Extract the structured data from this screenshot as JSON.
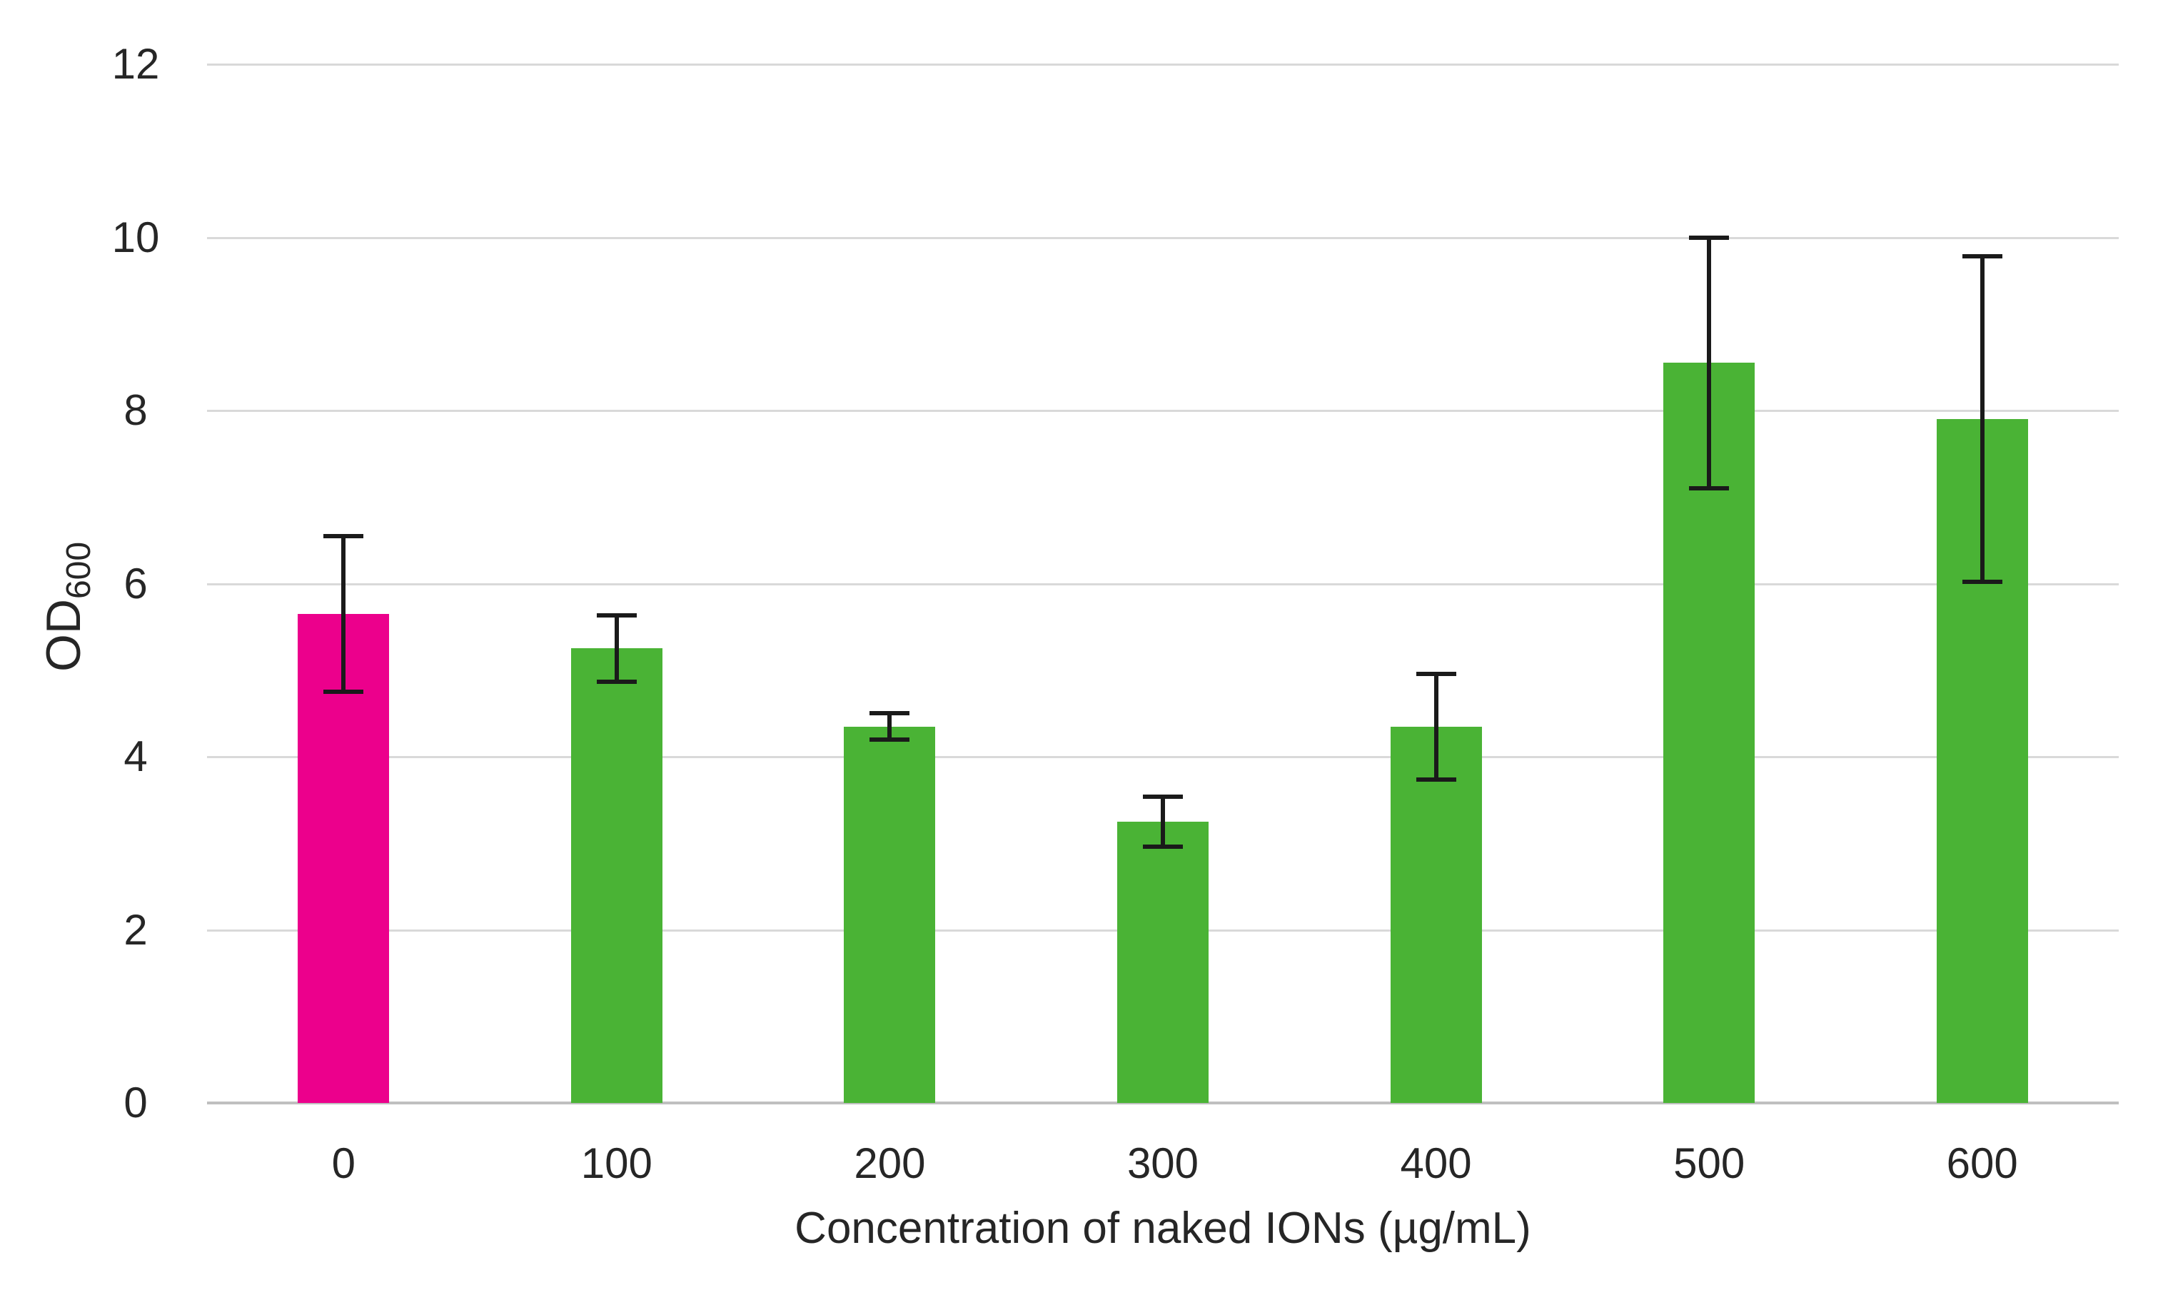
{
  "chart_data": {
    "type": "bar",
    "title": "",
    "xlabel": "Concentration of naked IONs  (µg/mL)",
    "ylabel_main": "OD",
    "ylabel_sub": "600",
    "categories": [
      "0",
      "100",
      "200",
      "300",
      "400",
      "500",
      "600"
    ],
    "values": [
      5.65,
      5.25,
      4.35,
      3.25,
      4.35,
      8.55,
      7.9
    ],
    "error_bars": [
      0.9,
      0.38,
      0.15,
      0.29,
      0.61,
      1.45,
      1.88
    ],
    "ylim": [
      0,
      12
    ],
    "yticks": [
      0,
      2,
      4,
      6,
      8,
      10,
      12
    ],
    "grid": true,
    "legend_position": "none",
    "bar_colors": [
      "#EC008C",
      "#4AB335",
      "#4AB335",
      "#4AB335",
      "#4AB335",
      "#4AB335",
      "#4AB335"
    ],
    "highlight_bar_color": "#EC008C",
    "default_bar_color": "#4AB335",
    "gridline_color": "#D9D9D9",
    "axis_line_color": "#BFBFBF",
    "error_bar_color": "#1A1A1A",
    "text_color": "#262626"
  }
}
